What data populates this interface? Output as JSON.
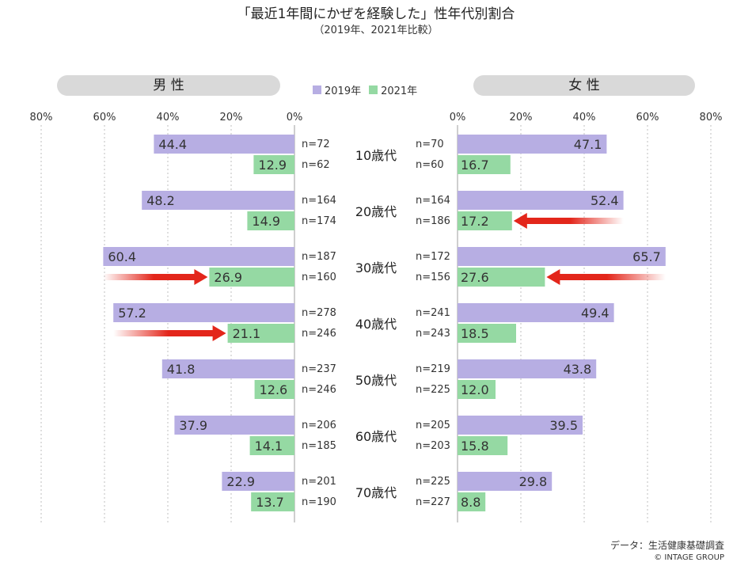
{
  "title": "「最近1年間にかぜを経験した」性年代別割合",
  "subtitle": "（2019年、2021年比較）",
  "panels": {
    "male": "男 性",
    "female": "女 性"
  },
  "footer": {
    "source": "データ：生活健康基礎調査",
    "copyright": "© INTAGE GROUP"
  },
  "colors": {
    "y2019": "#b7aee3",
    "y2021": "#95d9a3",
    "arrow": "#e3261b",
    "axis": "#bfbfbf"
  },
  "chart_data": {
    "type": "bar",
    "orientation": "horizontal-butterfly",
    "categories": [
      "10歳代",
      "20歳代",
      "30歳代",
      "40歳代",
      "50歳代",
      "60歳代",
      "70歳代"
    ],
    "xlim": [
      0,
      80
    ],
    "ticks": [
      "0%",
      "20%",
      "40%",
      "60%",
      "80%"
    ],
    "tick_values": [
      0,
      20,
      40,
      60,
      80
    ],
    "legend": [
      "2019年",
      "2021年"
    ],
    "male": {
      "y2019": [
        44.4,
        48.2,
        60.4,
        57.2,
        41.8,
        37.9,
        22.9
      ],
      "y2021": [
        12.9,
        14.9,
        26.9,
        21.1,
        12.6,
        14.1,
        13.7
      ],
      "n2019": [
        "n=72",
        "n=164",
        "n=187",
        "n=278",
        "n=237",
        "n=206",
        "n=201"
      ],
      "n2021": [
        "n=62",
        "n=174",
        "n=160",
        "n=246",
        "n=246",
        "n=185",
        "n=190"
      ],
      "arrows": [
        2,
        3
      ]
    },
    "female": {
      "y2019": [
        47.1,
        52.4,
        65.7,
        49.4,
        43.8,
        39.5,
        29.8
      ],
      "y2021": [
        16.7,
        17.2,
        27.6,
        18.5,
        12.0,
        15.8,
        8.8
      ],
      "n2019": [
        "n=70",
        "n=164",
        "n=172",
        "n=241",
        "n=219",
        "n=205",
        "n=225"
      ],
      "n2021": [
        "n=60",
        "n=186",
        "n=156",
        "n=243",
        "n=225",
        "n=203",
        "n=227"
      ],
      "arrows": [
        1,
        2
      ]
    }
  }
}
